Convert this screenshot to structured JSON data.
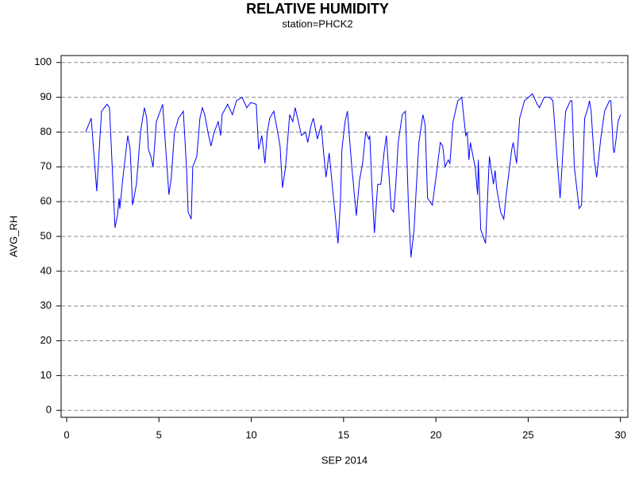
{
  "chart_data": {
    "type": "line",
    "title": "RELATIVE HUMIDITY",
    "subtitle": "station=PHCK2",
    "x_label": "SEP 2014",
    "y_label": "AVG_RH",
    "x": [
      1.03,
      1.33,
      1.63,
      1.89,
      2.19,
      2.32,
      2.62,
      2.75,
      2.84,
      2.88,
      3.05,
      3.31,
      3.44,
      3.57,
      3.78,
      4.0,
      4.21,
      4.34,
      4.43,
      4.56,
      4.68,
      4.86,
      5.2,
      5.41,
      5.54,
      5.67,
      5.84,
      6.06,
      6.32,
      6.49,
      6.58,
      6.75,
      6.83,
      7.05,
      7.22,
      7.35,
      7.48,
      7.69,
      7.82,
      7.99,
      8.21,
      8.34,
      8.42,
      8.72,
      8.98,
      9.2,
      9.5,
      9.76,
      9.97,
      10.27,
      10.4,
      10.57,
      10.74,
      10.87,
      11.0,
      11.22,
      11.43,
      11.56,
      11.69,
      11.86,
      12.08,
      12.25,
      12.38,
      12.55,
      12.72,
      12.94,
      13.06,
      13.24,
      13.36,
      13.58,
      13.79,
      13.92,
      14.05,
      14.22,
      14.4,
      14.7,
      14.83,
      14.91,
      15.08,
      15.21,
      15.43,
      15.69,
      15.86,
      16.03,
      16.2,
      16.37,
      16.42,
      16.54,
      16.67,
      16.85,
      17.02,
      17.19,
      17.32,
      17.58,
      17.71,
      17.83,
      17.96,
      18.18,
      18.35,
      18.52,
      18.65,
      18.82,
      18.95,
      19.08,
      19.3,
      19.42,
      19.55,
      19.81,
      20.03,
      20.24,
      20.37,
      20.5,
      20.67,
      20.76,
      20.93,
      21.19,
      21.4,
      21.62,
      21.7,
      21.79,
      21.87,
      22.05,
      22.13,
      22.26,
      22.3,
      22.43,
      22.69,
      22.9,
      23.12,
      23.21,
      23.29,
      23.51,
      23.68,
      23.81,
      24.11,
      24.19,
      24.37,
      24.54,
      24.8,
      25.23,
      25.49,
      25.61,
      25.87,
      26.17,
      26.34,
      26.56,
      26.73,
      26.9,
      27.03,
      27.29,
      27.37,
      27.5,
      27.76,
      27.89,
      28.06,
      28.24,
      28.32,
      28.41,
      28.58,
      28.71,
      28.93,
      29.14,
      29.4,
      29.48,
      29.61,
      29.66,
      29.74,
      29.87,
      30.0
    ],
    "series": [
      {
        "name": "AVG_RH",
        "color": "#0000ff",
        "values": [
          80,
          84,
          63,
          86,
          88,
          87,
          52.5,
          56,
          61,
          58,
          67,
          79,
          75,
          59,
          65,
          80,
          87,
          84,
          75,
          73,
          70,
          83,
          88,
          72,
          62,
          67,
          80,
          84,
          86,
          70,
          57,
          55,
          70,
          73,
          84,
          87,
          85,
          79,
          76,
          80,
          83,
          79,
          85,
          88,
          85,
          89,
          90,
          87,
          88.5,
          88,
          75,
          79,
          71,
          80,
          84,
          86,
          80,
          76,
          64,
          70,
          85,
          83,
          87,
          83,
          79,
          80,
          77,
          82,
          84,
          78,
          82,
          74,
          67,
          74,
          64,
          48,
          60,
          75,
          83,
          86,
          71,
          56,
          66,
          71,
          80,
          78,
          79,
          64,
          51,
          65,
          65,
          74,
          79,
          58,
          57,
          65,
          77,
          85,
          86,
          58,
          44,
          52,
          65,
          77,
          85,
          82,
          61,
          59,
          68,
          77,
          76,
          70,
          72,
          71,
          83,
          89,
          90,
          79,
          80,
          72,
          77,
          72,
          70,
          62,
          72,
          52,
          48,
          73,
          65,
          69,
          64,
          57,
          55,
          62,
          75,
          77,
          71,
          84,
          89,
          91,
          88,
          87,
          90,
          90,
          89,
          73,
          61,
          76,
          86,
          89,
          89,
          70,
          58,
          59,
          84,
          87,
          89,
          86,
          72,
          67,
          78,
          86,
          89,
          89,
          75,
          74,
          77,
          83,
          85
        ]
      }
    ],
    "xlim": [
      -0.3,
      30.4
    ],
    "ylim": [
      -2,
      102
    ],
    "xticks": [
      0,
      5,
      10,
      15,
      20,
      25,
      30
    ],
    "yticks": [
      0,
      10,
      20,
      30,
      40,
      50,
      60,
      70,
      80,
      90,
      100
    ],
    "grid": true
  }
}
